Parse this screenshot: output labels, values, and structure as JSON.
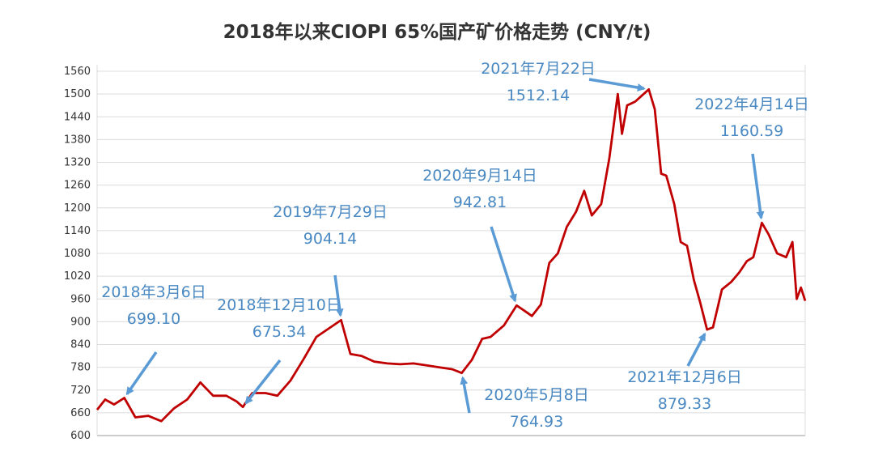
{
  "chart_data": {
    "type": "line",
    "title": "2018年以来CIOPI 65%国产矿价格走势 (CNY/t)",
    "xlabel": "",
    "ylabel": "",
    "ylim": [
      600,
      1560
    ],
    "yticks": [
      600,
      660,
      720,
      780,
      840,
      900,
      960,
      1020,
      1080,
      1140,
      1200,
      1260,
      1320,
      1380,
      1440,
      1500,
      1560
    ],
    "grid": true,
    "legend": "none",
    "line_color": "#c00000",
    "annotation_color": "#4a89c2",
    "series": [
      {
        "x": [
          "2018-01-01",
          "2018-01-20",
          "2018-02-10",
          "2018-03-06",
          "2018-04-01",
          "2018-05-01",
          "2018-06-01",
          "2018-07-01",
          "2018-08-01",
          "2018-09-01",
          "2018-10-01",
          "2018-11-01",
          "2018-11-25",
          "2018-12-10",
          "2019-01-01",
          "2019-02-01",
          "2019-03-01",
          "2019-04-01",
          "2019-05-01",
          "2019-06-01",
          "2019-07-29",
          "2019-08-20",
          "2019-09-15",
          "2019-10-15",
          "2019-11-15",
          "2019-12-15",
          "2020-01-15",
          "2020-02-15",
          "2020-03-15",
          "2020-04-15",
          "2020-05-08",
          "2020-06-01",
          "2020-06-25",
          "2020-07-15",
          "2020-08-15",
          "2020-09-14",
          "2020-10-01",
          "2020-10-20",
          "2020-11-10",
          "2020-11-30",
          "2020-12-20",
          "2021-01-10",
          "2021-02-01",
          "2021-02-20",
          "2021-03-10",
          "2021-04-01",
          "2021-04-20",
          "2021-05-10",
          "2021-05-20",
          "2021-06-01",
          "2021-06-20",
          "2021-07-10",
          "2021-07-22",
          "2021-08-05",
          "2021-08-20",
          "2021-09-01",
          "2021-09-20",
          "2021-10-05",
          "2021-10-20",
          "2021-11-05",
          "2021-11-20",
          "2021-12-06",
          "2021-12-20",
          "2022-01-10",
          "2022-02-01",
          "2022-02-20",
          "2022-03-10",
          "2022-03-25",
          "2022-04-14",
          "2022-04-30",
          "2022-05-20",
          "2022-06-10",
          "2022-06-25",
          "2022-07-05",
          "2022-07-15",
          "2022-07-25"
        ],
        "values": [
          668,
          695,
          682,
          699.1,
          648,
          652,
          638,
          672,
          695,
          740,
          705,
          705,
          690,
          675.34,
          712,
          712,
          705,
          745,
          800,
          860,
          904.14,
          815,
          810,
          795,
          790,
          788,
          790,
          785,
          780,
          775,
          764.93,
          800,
          855,
          860,
          890,
          942.81,
          930,
          915,
          945,
          1055,
          1080,
          1150,
          1190,
          1245,
          1180,
          1210,
          1330,
          1500,
          1395,
          1470,
          1480,
          1500,
          1512.14,
          1460,
          1290,
          1285,
          1210,
          1110,
          1100,
          1010,
          950,
          879.33,
          885,
          985,
          1005,
          1030,
          1060,
          1070,
          1160.59,
          1130,
          1080,
          1070,
          1110,
          960,
          990,
          955
        ]
      }
    ],
    "annotations": [
      {
        "date_label": "2018年3月6日",
        "value_label": "699.10"
      },
      {
        "date_label": "2018年12月10日",
        "value_label": "675.34"
      },
      {
        "date_label": "2019年7月29日",
        "value_label": "904.14"
      },
      {
        "date_label": "2020年5月8日",
        "value_label": "764.93"
      },
      {
        "date_label": "2020年9月14日",
        "value_label": "942.81"
      },
      {
        "date_label": "2021年7月22日",
        "value_label": "1512.14"
      },
      {
        "date_label": "2021年12月6日",
        "value_label": "879.33"
      },
      {
        "date_label": "2022年4月14日",
        "value_label": "1160.59"
      }
    ]
  }
}
